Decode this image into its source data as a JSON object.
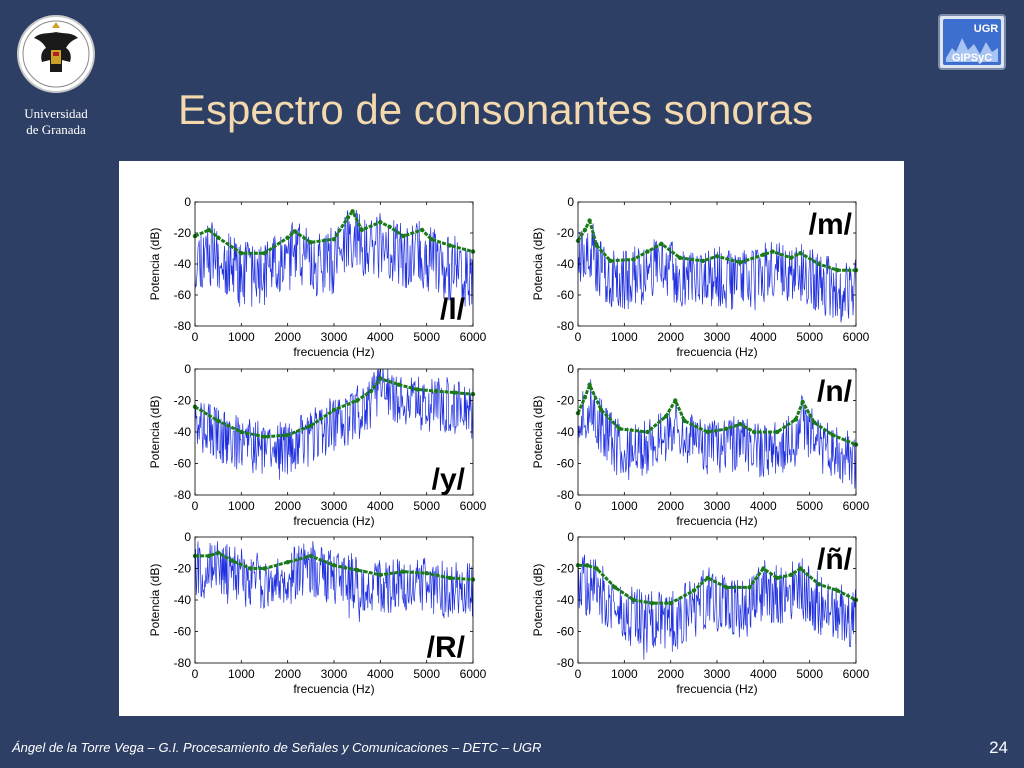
{
  "slide": {
    "title": "Espectro de consonantes sonoras",
    "university": [
      "Universidad",
      "de Granada"
    ],
    "logo_right": {
      "top": "UGR",
      "bottom": "GIPSyC"
    },
    "footer": "Ángel de la Torre Vega – G.I. Procesamiento de Señales y Comunicaciones – DETC – UGR",
    "page_number": "24"
  },
  "colors": {
    "background": "#2e3f66",
    "title": "#f3d9ad",
    "spectrum": "#1f2fe0",
    "envelope": "#1a7a1a"
  },
  "chart_data": [
    {
      "type": "line",
      "label": "/l/",
      "xlabel": "frecuencia (Hz)",
      "ylabel": "Potencia (dB)",
      "xlim": [
        0,
        6000
      ],
      "ylim": [
        -80,
        0
      ],
      "xticks": [
        0,
        1000,
        2000,
        3000,
        4000,
        5000,
        6000
      ],
      "yticks": [
        0,
        -20,
        -40,
        -60,
        -80
      ],
      "grid": false,
      "series": [
        {
          "role": "envelope",
          "x": [
            0,
            300,
            500,
            1000,
            1500,
            2000,
            2150,
            2500,
            3000,
            3300,
            3400,
            3600,
            4000,
            4200,
            4500,
            4900,
            5100,
            5500,
            6000
          ],
          "y": [
            -22,
            -18,
            -23,
            -33,
            -33,
            -23,
            -19,
            -26,
            -24,
            -10,
            -6,
            -18,
            -13,
            -16,
            -22,
            -18,
            -24,
            -28,
            -32
          ]
        },
        {
          "role": "spectrum",
          "floor_offset": -26,
          "spread": 22,
          "seed": 11
        }
      ]
    },
    {
      "type": "line",
      "label": "/m/",
      "xlabel": "frecuencia (Hz)",
      "ylabel": "Potencia (dB)",
      "xlim": [
        0,
        6000
      ],
      "ylim": [
        -80,
        0
      ],
      "xticks": [
        0,
        1000,
        2000,
        3000,
        4000,
        5000,
        6000
      ],
      "yticks": [
        0,
        -20,
        -40,
        -60,
        -80
      ],
      "grid": false,
      "series": [
        {
          "role": "envelope",
          "x": [
            0,
            150,
            250,
            400,
            700,
            1200,
            1500,
            1800,
            2200,
            2700,
            3000,
            3500,
            4000,
            4200,
            4600,
            4800,
            5200,
            5600,
            6000
          ],
          "y": [
            -25,
            -18,
            -12,
            -28,
            -38,
            -37,
            -32,
            -27,
            -36,
            -38,
            -35,
            -39,
            -34,
            -32,
            -36,
            -33,
            -40,
            -44,
            -44
          ]
        },
        {
          "role": "spectrum",
          "floor_offset": -22,
          "spread": 20,
          "seed": 23
        }
      ]
    },
    {
      "type": "line",
      "label": "/y/",
      "xlabel": "frecuencia (Hz)",
      "ylabel": "Potencia (dB)",
      "xlim": [
        0,
        6000
      ],
      "ylim": [
        -80,
        0
      ],
      "xticks": [
        0,
        1000,
        2000,
        3000,
        4000,
        5000,
        6000
      ],
      "yticks": [
        0,
        -20,
        -40,
        -60,
        -80
      ],
      "grid": false,
      "series": [
        {
          "role": "envelope",
          "x": [
            0,
            500,
            1000,
            1500,
            2000,
            2500,
            3000,
            3500,
            3800,
            4000,
            4400,
            4800,
            5200,
            5600,
            6000
          ],
          "y": [
            -24,
            -33,
            -40,
            -43,
            -42,
            -36,
            -26,
            -20,
            -14,
            -6,
            -10,
            -13,
            -14,
            -15,
            -16
          ]
        },
        {
          "role": "spectrum",
          "floor_offset": -15,
          "spread": 18,
          "seed": 37
        }
      ]
    },
    {
      "type": "line",
      "label": "/n/",
      "xlabel": "frecuencia (Hz)",
      "ylabel": "Potencia (dB)",
      "xlim": [
        0,
        6000
      ],
      "ylim": [
        -80,
        0
      ],
      "xticks": [
        0,
        1000,
        2000,
        3000,
        4000,
        5000,
        6000
      ],
      "yticks": [
        0,
        -20,
        -40,
        -60,
        -80
      ],
      "grid": false,
      "series": [
        {
          "role": "envelope",
          "x": [
            0,
            150,
            250,
            500,
            900,
            1500,
            1900,
            2100,
            2300,
            2800,
            3200,
            3500,
            3800,
            4300,
            4700,
            4850,
            5100,
            5500,
            6000
          ],
          "y": [
            -28,
            -18,
            -10,
            -26,
            -38,
            -40,
            -30,
            -20,
            -33,
            -40,
            -38,
            -35,
            -40,
            -40,
            -32,
            -21,
            -34,
            -42,
            -48
          ]
        },
        {
          "role": "spectrum",
          "floor_offset": -20,
          "spread": 18,
          "seed": 51
        }
      ]
    },
    {
      "type": "line",
      "label": "/R/",
      "xlabel": "frecuencia (Hz)",
      "ylabel": "Potencia (dB)",
      "xlim": [
        0,
        6000
      ],
      "ylim": [
        -80,
        0
      ],
      "xticks": [
        0,
        1000,
        2000,
        3000,
        4000,
        5000,
        6000
      ],
      "yticks": [
        0,
        -20,
        -40,
        -60,
        -80
      ],
      "grid": false,
      "series": [
        {
          "role": "envelope",
          "x": [
            0,
            300,
            500,
            800,
            1200,
            1500,
            2000,
            2500,
            3000,
            3500,
            4000,
            4500,
            5000,
            5500,
            6000
          ],
          "y": [
            -12,
            -12,
            -10,
            -15,
            -20,
            -20,
            -16,
            -12,
            -18,
            -21,
            -24,
            -22,
            -23,
            -26,
            -27
          ]
        },
        {
          "role": "spectrum",
          "floor_offset": -14,
          "spread": 18,
          "seed": 67
        }
      ]
    },
    {
      "type": "line",
      "label": "/ñ/",
      "xlabel": "frecuencia (Hz)",
      "ylabel": "Potencia (dB)",
      "xlim": [
        0,
        6000
      ],
      "ylim": [
        -80,
        0
      ],
      "xticks": [
        0,
        1000,
        2000,
        3000,
        4000,
        5000,
        6000
      ],
      "yticks": [
        0,
        -20,
        -40,
        -60,
        -80
      ],
      "grid": false,
      "series": [
        {
          "role": "envelope",
          "x": [
            0,
            200,
            400,
            800,
            1200,
            1600,
            2000,
            2500,
            2800,
            3200,
            3700,
            4000,
            4300,
            4600,
            4800,
            5200,
            5600,
            6000
          ],
          "y": [
            -18,
            -18,
            -20,
            -32,
            -40,
            -42,
            -42,
            -34,
            -26,
            -32,
            -32,
            -20,
            -26,
            -24,
            -20,
            -30,
            -34,
            -40
          ]
        },
        {
          "role": "spectrum",
          "floor_offset": -22,
          "spread": 20,
          "seed": 83
        }
      ]
    }
  ]
}
